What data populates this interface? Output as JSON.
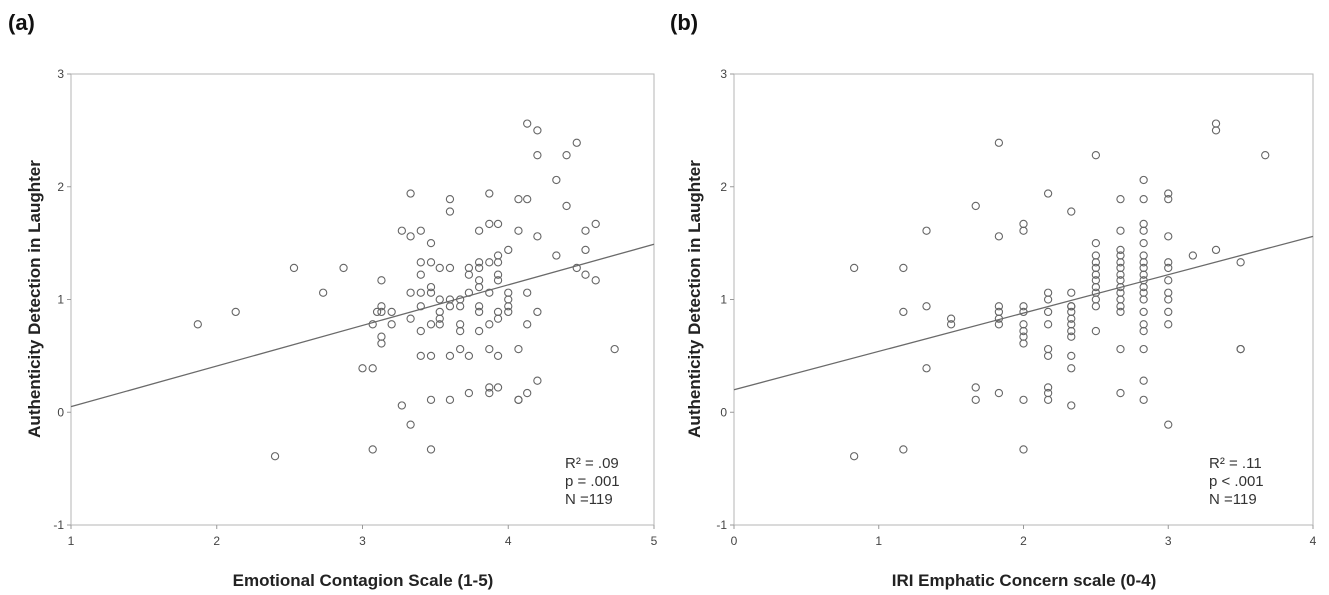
{
  "chart_data": [
    {
      "type": "scatter",
      "panel": "(a)",
      "xlabel": "Emotional Contagion Scale (1-5)",
      "ylabel": "Authenticity Detection in Laughter",
      "xlim": [
        1,
        5
      ],
      "ylim": [
        -1,
        3
      ],
      "xticks": [
        "1",
        "2",
        "3",
        "4",
        "5"
      ],
      "yticks": [
        "-1",
        "0",
        "1",
        "2",
        "3"
      ],
      "stats": [
        "R² = .09",
        "p = .001",
        "N =119"
      ],
      "fit": {
        "x": [
          1,
          5
        ],
        "y": [
          0.05,
          1.49
        ]
      },
      "points": [
        [
          1.87,
          0.78
        ],
        [
          2.13,
          0.89
        ],
        [
          2.53,
          1.28
        ],
        [
          2.73,
          1.06
        ],
        [
          2.87,
          1.28
        ],
        [
          2.4,
          -0.39
        ],
        [
          3.0,
          0.39
        ],
        [
          3.07,
          0.39
        ],
        [
          3.07,
          0.78
        ],
        [
          3.07,
          -0.33
        ],
        [
          3.1,
          0.89
        ],
        [
          3.13,
          1.17
        ],
        [
          3.13,
          0.94
        ],
        [
          3.13,
          0.89
        ],
        [
          3.13,
          0.67
        ],
        [
          3.13,
          0.61
        ],
        [
          3.2,
          0.89
        ],
        [
          3.2,
          0.78
        ],
        [
          3.27,
          1.61
        ],
        [
          3.27,
          0.06
        ],
        [
          3.33,
          1.94
        ],
        [
          3.33,
          1.56
        ],
        [
          3.33,
          1.06
        ],
        [
          3.33,
          0.83
        ],
        [
          3.33,
          -0.11
        ],
        [
          3.4,
          1.61
        ],
        [
          3.4,
          1.33
        ],
        [
          3.4,
          1.22
        ],
        [
          3.4,
          1.06
        ],
        [
          3.4,
          0.94
        ],
        [
          3.4,
          0.72
        ],
        [
          3.47,
          1.5
        ],
        [
          3.47,
          1.33
        ],
        [
          3.47,
          1.11
        ],
        [
          3.47,
          1.06
        ],
        [
          3.47,
          0.78
        ],
        [
          3.47,
          0.5
        ],
        [
          3.47,
          0.11
        ],
        [
          3.47,
          -0.33
        ],
        [
          3.53,
          1.28
        ],
        [
          3.53,
          1.0
        ],
        [
          3.53,
          0.83
        ],
        [
          3.53,
          0.78
        ],
        [
          3.6,
          1.89
        ],
        [
          3.6,
          1.78
        ],
        [
          3.6,
          1.28
        ],
        [
          3.6,
          1.0
        ],
        [
          3.6,
          0.94
        ],
        [
          3.6,
          0.5
        ],
        [
          3.6,
          0.11
        ],
        [
          3.67,
          1.0
        ],
        [
          3.67,
          0.78
        ],
        [
          3.67,
          0.72
        ],
        [
          3.67,
          0.56
        ],
        [
          3.73,
          1.28
        ],
        [
          3.73,
          1.22
        ],
        [
          3.73,
          1.06
        ],
        [
          3.73,
          0.5
        ],
        [
          3.73,
          0.17
        ],
        [
          3.8,
          1.61
        ],
        [
          3.8,
          1.33
        ],
        [
          3.8,
          1.28
        ],
        [
          3.8,
          1.17
        ],
        [
          3.8,
          1.11
        ],
        [
          3.8,
          0.94
        ],
        [
          3.8,
          0.89
        ],
        [
          3.8,
          0.72
        ],
        [
          3.87,
          1.94
        ],
        [
          3.87,
          1.67
        ],
        [
          3.87,
          1.33
        ],
        [
          3.87,
          1.06
        ],
        [
          3.87,
          0.78
        ],
        [
          3.87,
          0.56
        ],
        [
          3.87,
          0.22
        ],
        [
          3.87,
          0.17
        ],
        [
          3.93,
          1.67
        ],
        [
          3.93,
          1.39
        ],
        [
          3.93,
          1.22
        ],
        [
          3.93,
          1.17
        ],
        [
          3.93,
          0.89
        ],
        [
          3.93,
          0.83
        ],
        [
          3.93,
          0.5
        ],
        [
          3.93,
          0.22
        ],
        [
          4.0,
          1.44
        ],
        [
          4.0,
          1.06
        ],
        [
          4.0,
          0.94
        ],
        [
          4.0,
          0.89
        ],
        [
          4.07,
          1.89
        ],
        [
          4.07,
          1.61
        ],
        [
          4.07,
          0.56
        ],
        [
          4.07,
          0.11
        ],
        [
          4.13,
          2.56
        ],
        [
          4.13,
          1.89
        ],
        [
          4.13,
          1.06
        ],
        [
          4.13,
          0.78
        ],
        [
          4.13,
          0.17
        ],
        [
          4.2,
          2.5
        ],
        [
          4.2,
          2.28
        ],
        [
          4.2,
          1.56
        ],
        [
          4.2,
          0.89
        ],
        [
          4.2,
          0.28
        ],
        [
          4.33,
          2.06
        ],
        [
          4.33,
          1.39
        ],
        [
          4.4,
          2.28
        ],
        [
          4.4,
          1.83
        ],
        [
          4.47,
          2.39
        ],
        [
          4.47,
          1.28
        ],
        [
          4.53,
          1.61
        ],
        [
          4.53,
          1.44
        ],
        [
          4.53,
          1.22
        ],
        [
          4.6,
          1.67
        ],
        [
          4.6,
          1.17
        ],
        [
          4.73,
          0.56
        ],
        [
          3.93,
          1.33
        ],
        [
          4.07,
          0.11
        ],
        [
          3.67,
          0.94
        ],
        [
          3.4,
          0.5
        ],
        [
          4.0,
          1.0
        ],
        [
          3.53,
          0.89
        ]
      ]
    },
    {
      "type": "scatter",
      "panel": "(b)",
      "xlabel": "IRI Emphatic Concern scale (0-4)",
      "ylabel": "Authenticity Detection in Laughter",
      "xlim": [
        0,
        4
      ],
      "ylim": [
        -1,
        3
      ],
      "xticks": [
        "0",
        "1",
        "2",
        "3",
        "4"
      ],
      "yticks": [
        "-1",
        "0",
        "1",
        "2",
        "3"
      ],
      "stats": [
        "R² = .11",
        "p < .001",
        "N =119"
      ],
      "fit": {
        "x": [
          0,
          4
        ],
        "y": [
          0.2,
          1.56
        ]
      },
      "points": [
        [
          0.83,
          1.28
        ],
        [
          0.83,
          -0.39
        ],
        [
          1.17,
          1.28
        ],
        [
          1.17,
          0.89
        ],
        [
          1.17,
          -0.33
        ],
        [
          1.33,
          1.61
        ],
        [
          1.33,
          0.94
        ],
        [
          1.33,
          0.39
        ],
        [
          1.5,
          0.83
        ],
        [
          1.5,
          0.78
        ],
        [
          1.67,
          1.83
        ],
        [
          1.67,
          0.22
        ],
        [
          1.67,
          0.11
        ],
        [
          1.83,
          2.39
        ],
        [
          1.83,
          1.56
        ],
        [
          1.83,
          0.94
        ],
        [
          1.83,
          0.89
        ],
        [
          1.83,
          0.83
        ],
        [
          1.83,
          0.17
        ],
        [
          2.0,
          1.67
        ],
        [
          2.0,
          1.61
        ],
        [
          2.0,
          0.89
        ],
        [
          2.0,
          0.78
        ],
        [
          2.0,
          0.67
        ],
        [
          2.0,
          0.61
        ],
        [
          2.0,
          0.11
        ],
        [
          2.0,
          -0.33
        ],
        [
          2.17,
          1.94
        ],
        [
          2.17,
          1.06
        ],
        [
          2.17,
          1.0
        ],
        [
          2.17,
          0.78
        ],
        [
          2.17,
          0.5
        ],
        [
          2.17,
          0.22
        ],
        [
          2.17,
          0.17
        ],
        [
          2.17,
          0.11
        ],
        [
          2.33,
          1.78
        ],
        [
          2.33,
          1.06
        ],
        [
          2.33,
          0.94
        ],
        [
          2.33,
          0.89
        ],
        [
          2.33,
          0.83
        ],
        [
          2.33,
          0.72
        ],
        [
          2.33,
          0.67
        ],
        [
          2.33,
          0.5
        ],
        [
          2.33,
          0.39
        ],
        [
          2.33,
          0.06
        ],
        [
          2.5,
          2.28
        ],
        [
          2.5,
          1.5
        ],
        [
          2.5,
          1.33
        ],
        [
          2.5,
          1.28
        ],
        [
          2.5,
          1.22
        ],
        [
          2.5,
          1.17
        ],
        [
          2.5,
          1.0
        ],
        [
          2.5,
          0.72
        ],
        [
          2.67,
          1.89
        ],
        [
          2.67,
          1.61
        ],
        [
          2.67,
          1.44
        ],
        [
          2.67,
          1.33
        ],
        [
          2.67,
          1.28
        ],
        [
          2.67,
          1.22
        ],
        [
          2.67,
          1.17
        ],
        [
          2.67,
          1.11
        ],
        [
          2.67,
          1.06
        ],
        [
          2.67,
          0.89
        ],
        [
          2.67,
          0.56
        ],
        [
          2.67,
          0.17
        ],
        [
          2.83,
          2.06
        ],
        [
          2.83,
          1.89
        ],
        [
          2.83,
          1.67
        ],
        [
          2.83,
          1.61
        ],
        [
          2.83,
          1.5
        ],
        [
          2.83,
          1.39
        ],
        [
          2.83,
          1.28
        ],
        [
          2.83,
          1.22
        ],
        [
          2.83,
          1.11
        ],
        [
          2.83,
          1.06
        ],
        [
          2.83,
          1.0
        ],
        [
          2.83,
          0.78
        ],
        [
          2.83,
          0.72
        ],
        [
          2.83,
          0.56
        ],
        [
          2.83,
          0.28
        ],
        [
          2.83,
          0.11
        ],
        [
          3.0,
          1.94
        ],
        [
          3.0,
          1.89
        ],
        [
          3.0,
          1.56
        ],
        [
          3.0,
          1.33
        ],
        [
          3.0,
          1.28
        ],
        [
          3.0,
          1.17
        ],
        [
          3.0,
          1.0
        ],
        [
          3.0,
          0.89
        ],
        [
          3.0,
          0.78
        ],
        [
          3.0,
          -0.11
        ],
        [
          3.17,
          1.39
        ],
        [
          3.33,
          2.56
        ],
        [
          3.33,
          2.5
        ],
        [
          3.33,
          1.44
        ],
        [
          3.5,
          1.33
        ],
        [
          3.5,
          0.56
        ],
        [
          3.67,
          2.28
        ],
        [
          2.17,
          0.89
        ],
        [
          2.5,
          1.11
        ],
        [
          2.67,
          1.0
        ],
        [
          2.83,
          1.17
        ],
        [
          2.0,
          0.72
        ],
        [
          2.33,
          0.94
        ],
        [
          1.83,
          0.78
        ],
        [
          2.5,
          0.94
        ],
        [
          2.67,
          0.94
        ],
        [
          2.83,
          0.89
        ],
        [
          3.0,
          1.06
        ],
        [
          2.17,
          0.56
        ],
        [
          2.33,
          0.78
        ],
        [
          2.5,
          1.06
        ],
        [
          2.67,
          1.39
        ],
        [
          2.83,
          1.33
        ],
        [
          3.5,
          0.56
        ],
        [
          2.0,
          0.94
        ],
        [
          2.5,
          1.39
        ]
      ]
    }
  ]
}
